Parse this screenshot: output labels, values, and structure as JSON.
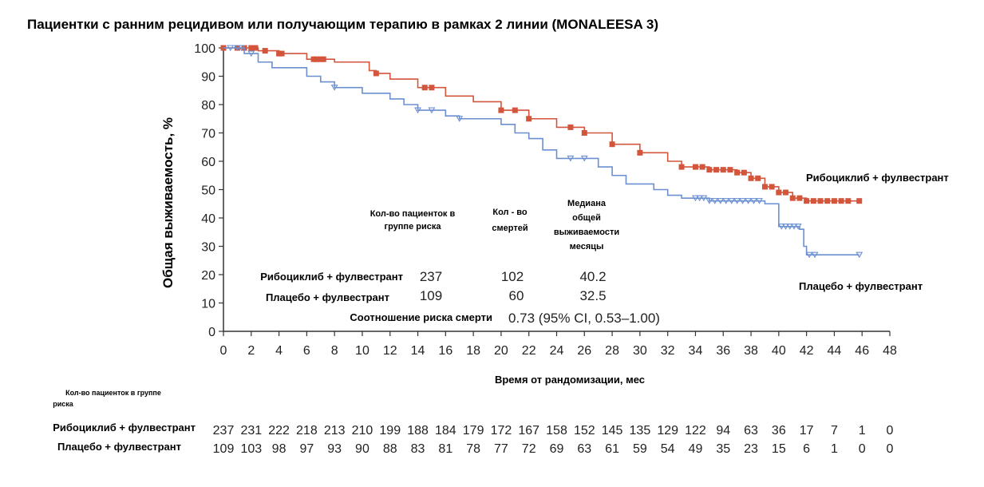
{
  "title": "Пациентки с ранним рецидивом или получающим терапию в рамках 2 линии  (MONALEESA 3)",
  "chart_data": {
    "type": "line",
    "subtype": "kaplan-meier",
    "title": "Пациентки с ранним рецидивом или получающим терапию в рамках 2 линии  (MONALEESA 3)",
    "xlabel": "Время от рандомизации, мес",
    "ylabel": "Общая выживаемость, %",
    "xlim": [
      0,
      48
    ],
    "ylim": [
      0,
      100
    ],
    "x_ticks": [
      0,
      2,
      4,
      6,
      8,
      10,
      12,
      14,
      16,
      18,
      20,
      22,
      24,
      26,
      28,
      30,
      32,
      34,
      36,
      38,
      40,
      42,
      44,
      46,
      48
    ],
    "y_ticks": [
      0,
      10,
      20,
      30,
      40,
      50,
      60,
      70,
      80,
      90,
      100
    ],
    "grid": false,
    "series": [
      {
        "name": "Рибоциклиб + фулвестрант",
        "color": "#d2553c",
        "steps": [
          [
            0,
            100
          ],
          [
            2.5,
            99
          ],
          [
            4,
            98
          ],
          [
            6,
            96
          ],
          [
            8,
            95
          ],
          [
            10.5,
            92
          ],
          [
            11,
            91
          ],
          [
            12,
            89
          ],
          [
            14,
            86
          ],
          [
            16,
            83
          ],
          [
            18,
            81
          ],
          [
            20,
            78
          ],
          [
            22,
            75
          ],
          [
            24,
            72
          ],
          [
            26,
            70
          ],
          [
            28,
            66
          ],
          [
            30,
            63
          ],
          [
            32,
            60
          ],
          [
            33,
            58
          ],
          [
            35,
            57
          ],
          [
            37,
            56
          ],
          [
            38,
            54
          ],
          [
            39,
            51
          ],
          [
            40,
            49
          ],
          [
            41,
            47
          ],
          [
            42,
            46
          ],
          [
            45.8,
            46
          ]
        ],
        "censors": [
          0,
          1,
          1.5,
          2,
          2.3,
          3,
          4,
          4.2,
          6.5,
          6.7,
          7,
          7.2,
          11,
          14.5,
          15,
          20,
          21,
          22,
          25,
          26,
          28,
          30,
          33,
          34,
          34.5,
          35,
          35.5,
          36,
          36.5,
          37,
          37.5,
          38,
          38.5,
          39,
          39.5,
          40,
          40.5,
          41,
          41.5,
          42,
          42.5,
          43,
          43.5,
          44,
          44.5,
          45,
          45.8
        ]
      },
      {
        "name": "Плацебо + фулвестрант",
        "color": "#6b8fd1",
        "steps": [
          [
            0,
            100
          ],
          [
            1.5,
            98
          ],
          [
            2.5,
            95
          ],
          [
            3.5,
            93
          ],
          [
            6,
            90
          ],
          [
            7,
            88
          ],
          [
            8,
            86
          ],
          [
            10,
            84
          ],
          [
            12,
            82
          ],
          [
            13,
            80
          ],
          [
            14,
            78
          ],
          [
            16,
            76
          ],
          [
            17,
            75
          ],
          [
            20,
            73
          ],
          [
            21,
            70
          ],
          [
            22,
            68
          ],
          [
            23,
            64
          ],
          [
            24,
            61
          ],
          [
            27,
            58
          ],
          [
            28,
            55
          ],
          [
            29,
            52
          ],
          [
            31,
            50
          ],
          [
            32,
            48
          ],
          [
            33,
            47
          ],
          [
            35,
            46
          ],
          [
            37,
            46
          ],
          [
            39,
            45
          ],
          [
            40,
            37
          ],
          [
            41.5,
            36
          ],
          [
            41.8,
            30
          ],
          [
            42,
            27
          ],
          [
            45.8,
            27
          ]
        ],
        "censors": [
          0.5,
          1,
          1.3,
          2,
          8,
          14,
          15,
          17,
          25,
          26,
          34,
          34.3,
          34.6,
          35,
          35.4,
          35.8,
          36.2,
          36.6,
          37,
          37.4,
          37.8,
          38.2,
          38.6,
          40.2,
          40.5,
          40.8,
          41.1,
          41.4,
          42.2,
          42.6,
          45.8
        ]
      }
    ]
  },
  "stats_table": {
    "header_n": "Кол-во пациенток в группе риска",
    "header_deaths": "Кол - во смертей",
    "header_median": "Медиана общей выживаемости месяцы",
    "rows": [
      {
        "arm": "Рибоциклиб + фулвестрант",
        "n": "237",
        "deaths": "102",
        "median": "40.2"
      },
      {
        "arm": "Плацебо + фулвестрант",
        "n": "109",
        "deaths": "60",
        "median": "32.5"
      }
    ],
    "hr_label": "Соотношение риска смерти",
    "hr_value": "0.73 (95% CI, 0.53–1.00)"
  },
  "series_labels": {
    "ribo": "Рибоциклиб + фулвестрант",
    "placebo": "Плацебо + фулвестрант"
  },
  "risk_table": {
    "header": "Кол-во пациенток в группе риска",
    "rows": [
      {
        "label": "Рибоциклиб + фулвестрант",
        "values": [
          "237",
          "231",
          "222",
          "218",
          "213",
          "210",
          "199",
          "188",
          "184",
          "179",
          "172",
          "167",
          "158",
          "152",
          "145",
          "135",
          "129",
          "122",
          "94",
          "63",
          "36",
          "17",
          "7",
          "1",
          "0"
        ]
      },
      {
        "label": "Плацебо + фулвестрант",
        "values": [
          "109",
          "103",
          "98",
          "97",
          "93",
          "90",
          "88",
          "83",
          "81",
          "78",
          "77",
          "72",
          "69",
          "63",
          "61",
          "59",
          "54",
          "49",
          "35",
          "23",
          "15",
          "6",
          "1",
          "0",
          "0"
        ]
      }
    ]
  }
}
